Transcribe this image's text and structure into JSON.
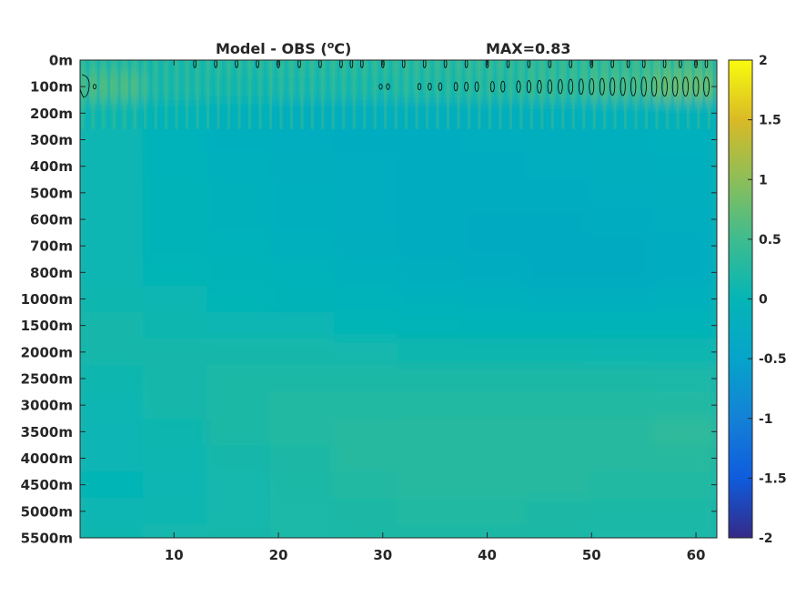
{
  "chart_data": {
    "type": "heatmap",
    "title_left": "Model - OBS (",
    "title_sup": "o",
    "title_unit": "C)",
    "title_right": "MAX=0.83",
    "y_tick_labels": [
      "0m",
      "100m",
      "200m",
      "300m",
      "400m",
      "500m",
      "600m",
      "700m",
      "800m",
      "1000m",
      "1500m",
      "2000m",
      "2500m",
      "3000m",
      "3500m",
      "4000m",
      "4500m",
      "5000m",
      "5500m"
    ],
    "x_ticks": [
      10,
      20,
      30,
      40,
      50,
      60
    ],
    "xlim": [
      1,
      62
    ],
    "colorbar_ticks": [
      2,
      1.5,
      1,
      0.5,
      0,
      -0.5,
      -1,
      -1.5,
      -2
    ],
    "clim": [
      -2,
      2
    ],
    "colormap": "parula",
    "contour_level": 0.83,
    "field": [
      [
        0.3,
        0.22,
        0.25,
        0.28,
        0.3,
        0.32,
        0.35,
        0.4,
        0.45,
        0.55
      ],
      [
        0.6,
        0.2,
        0.15,
        0.18,
        0.2,
        0.25,
        0.3,
        0.4,
        0.55,
        0.8
      ],
      [
        0.1,
        -0.05,
        -0.15,
        -0.2,
        -0.22,
        -0.22,
        -0.2,
        -0.18,
        -0.15,
        -0.12
      ],
      [
        0.05,
        -0.1,
        -0.18,
        -0.22,
        -0.25,
        -0.25,
        -0.22,
        -0.2,
        -0.18,
        -0.15
      ],
      [
        0.05,
        -0.08,
        -0.15,
        -0.2,
        -0.22,
        -0.25,
        -0.25,
        -0.22,
        -0.2,
        -0.18
      ],
      [
        0.05,
        -0.05,
        -0.12,
        -0.18,
        -0.22,
        -0.25,
        -0.25,
        -0.25,
        -0.22,
        -0.2
      ],
      [
        0.05,
        -0.05,
        -0.12,
        -0.18,
        -0.22,
        -0.25,
        -0.28,
        -0.28,
        -0.25,
        -0.22
      ],
      [
        0.05,
        -0.05,
        -0.1,
        -0.15,
        -0.2,
        -0.25,
        -0.28,
        -0.3,
        -0.28,
        -0.25
      ],
      [
        0.05,
        0.0,
        -0.05,
        -0.1,
        -0.15,
        -0.2,
        -0.25,
        -0.28,
        -0.28,
        -0.25
      ],
      [
        0.1,
        0.05,
        0.0,
        -0.05,
        -0.1,
        -0.12,
        -0.15,
        -0.18,
        -0.18,
        -0.15
      ],
      [
        0.15,
        0.1,
        0.05,
        0.05,
        0.0,
        -0.02,
        -0.05,
        -0.05,
        -0.05,
        -0.05
      ],
      [
        0.15,
        0.15,
        0.15,
        0.15,
        0.12,
        0.1,
        0.1,
        0.1,
        0.08,
        0.08
      ],
      [
        0.1,
        0.15,
        0.2,
        0.2,
        0.2,
        0.2,
        0.2,
        0.2,
        0.2,
        0.18
      ],
      [
        0.05,
        0.15,
        0.2,
        0.25,
        0.25,
        0.25,
        0.25,
        0.25,
        0.25,
        0.25
      ],
      [
        0.02,
        0.1,
        0.2,
        0.25,
        0.28,
        0.3,
        0.3,
        0.3,
        0.3,
        0.35
      ],
      [
        0.02,
        0.08,
        0.15,
        0.22,
        0.28,
        0.3,
        0.3,
        0.3,
        0.28,
        0.3
      ],
      [
        0.0,
        0.05,
        0.12,
        0.2,
        0.25,
        0.28,
        0.28,
        0.28,
        0.25,
        0.25
      ],
      [
        0.05,
        0.08,
        0.12,
        0.18,
        0.22,
        0.25,
        0.25,
        0.22,
        0.2,
        0.2
      ],
      [
        0.1,
        0.12,
        0.15,
        0.18,
        0.2,
        0.22,
        0.22,
        0.2,
        0.18,
        0.18
      ]
    ]
  }
}
